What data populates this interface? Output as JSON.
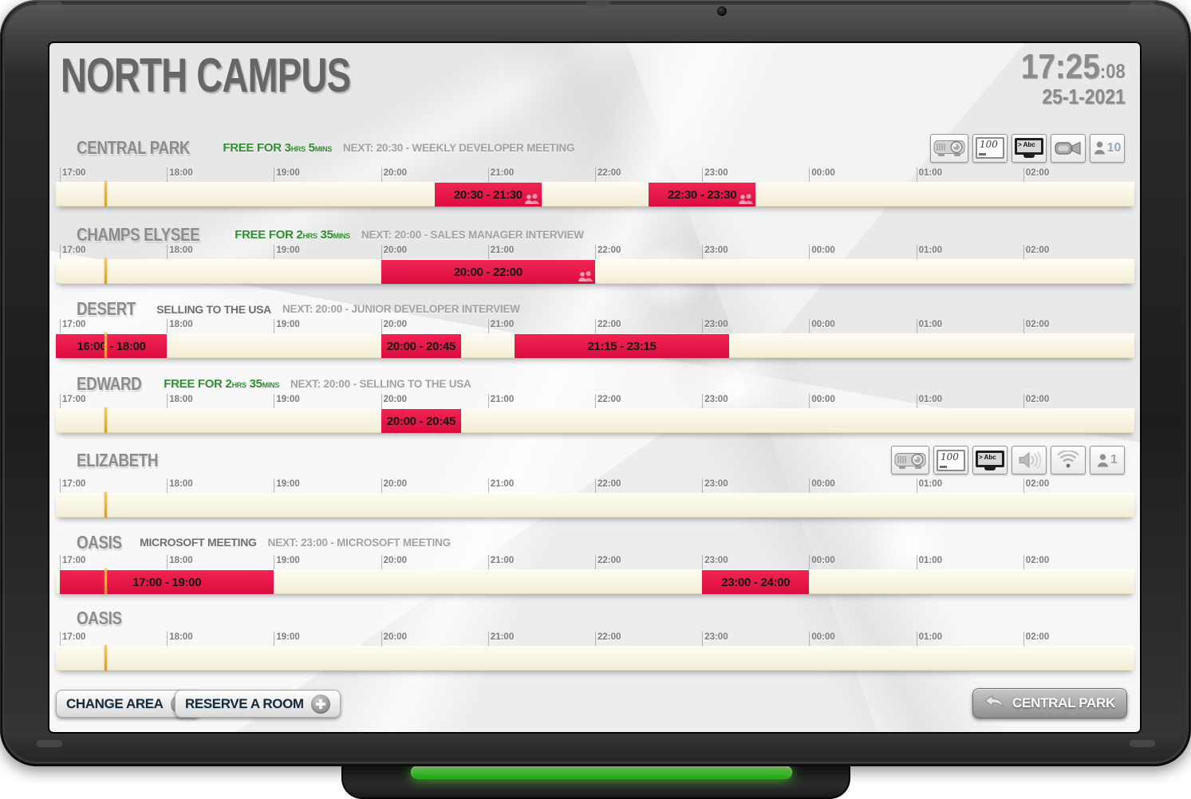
{
  "header": {
    "title": "NORTH CAMPUS",
    "time": "17:25",
    "seconds": ":08",
    "date": "25-1-2021"
  },
  "timeline": {
    "hour_labels": [
      "17:00",
      "18:00",
      "19:00",
      "20:00",
      "21:00",
      "22:00",
      "23:00",
      "00:00",
      "01:00",
      "02:00"
    ],
    "current_time": "17:25"
  },
  "rooms": [
    {
      "name": "CENTRAL PARK",
      "status": {
        "type": "free",
        "prefix": "FREE FOR",
        "hours": "3",
        "hours_unit": "HRS",
        "minutes": "5",
        "minutes_unit": "MINS"
      },
      "next": "NEXT: 20:30 - WEEKLY DEVELOPER MEETING",
      "amenities": [
        {
          "icon": "projector"
        },
        {
          "icon": "whiteboard",
          "label": "100"
        },
        {
          "icon": "tv",
          "label": "> Abc"
        },
        {
          "icon": "camera"
        },
        {
          "icon": "capacity",
          "label": "10"
        }
      ],
      "bookings": [
        {
          "from": "20:30",
          "to": "21:30",
          "label": "20:30 - 21:30",
          "attendees_icon": true
        },
        {
          "from": "22:30",
          "to": "23:30",
          "label": "22:30 - 23:30",
          "attendees_icon": true
        }
      ]
    },
    {
      "name": "CHAMPS ELYSEE",
      "status": {
        "type": "free",
        "prefix": "FREE FOR",
        "hours": "2",
        "hours_unit": "HRS",
        "minutes": "35",
        "minutes_unit": "MINS"
      },
      "next": "NEXT: 20:00 - SALES MANAGER INTERVIEW",
      "amenities": [],
      "bookings": [
        {
          "from": "20:00",
          "to": "22:00",
          "label": "20:00 - 22:00",
          "attendees_icon": true
        }
      ]
    },
    {
      "name": "DESERT",
      "status": {
        "type": "busy",
        "label": "SELLING TO THE USA"
      },
      "next": "NEXT: 20:00 - JUNIOR DEVELOPER INTERVIEW",
      "amenities": [],
      "bookings": [
        {
          "from": "16:00",
          "to": "18:00",
          "label": "16:00 - 18:00",
          "attendees_icon": false
        },
        {
          "from": "20:00",
          "to": "20:45",
          "label": "20:00 - 20:45",
          "attendees_icon": false
        },
        {
          "from": "21:15",
          "to": "23:15",
          "label": "21:15 - 23:15",
          "attendees_icon": false
        }
      ]
    },
    {
      "name": "EDWARD",
      "status": {
        "type": "free",
        "prefix": "FREE FOR",
        "hours": "2",
        "hours_unit": "HRS",
        "minutes": "35",
        "minutes_unit": "MINS"
      },
      "next": "NEXT: 20:00 - SELLING TO THE USA",
      "amenities": [],
      "bookings": [
        {
          "from": "20:00",
          "to": "20:45",
          "label": "20:00 - 20:45",
          "attendees_icon": false
        }
      ]
    },
    {
      "name": "ELIZABETH",
      "status": null,
      "next": "",
      "amenities": [
        {
          "icon": "projector"
        },
        {
          "icon": "whiteboard",
          "label": "100"
        },
        {
          "icon": "tv",
          "label": "> Abc"
        },
        {
          "icon": "speaker"
        },
        {
          "icon": "wifi"
        },
        {
          "icon": "capacity",
          "label": "1"
        }
      ],
      "bookings": []
    },
    {
      "name": "OASIS",
      "status": {
        "type": "busy",
        "label": "MICROSOFT MEETING"
      },
      "next": "NEXT: 23:00 - MICROSOFT MEETING",
      "amenities": [],
      "bookings": [
        {
          "from": "17:00",
          "to": "19:00",
          "label": "17:00 - 19:00",
          "attendees_icon": false
        },
        {
          "from": "23:00",
          "to": "24:00",
          "label": "23:00 - 24:00",
          "attendees_icon": false
        }
      ]
    },
    {
      "name": "OASIS",
      "status": null,
      "next": "",
      "amenities": [],
      "bookings": []
    }
  ],
  "footer": {
    "change_area": "CHANGE AREA",
    "reserve_room": "RESERVE A ROOM",
    "back_button": "CENTRAL PARK"
  },
  "colors": {
    "booking_red": "#e5164a",
    "free_green": "#2f8f2f",
    "now_line_orange": "#eea31b",
    "led_green": "#4ce23a"
  }
}
